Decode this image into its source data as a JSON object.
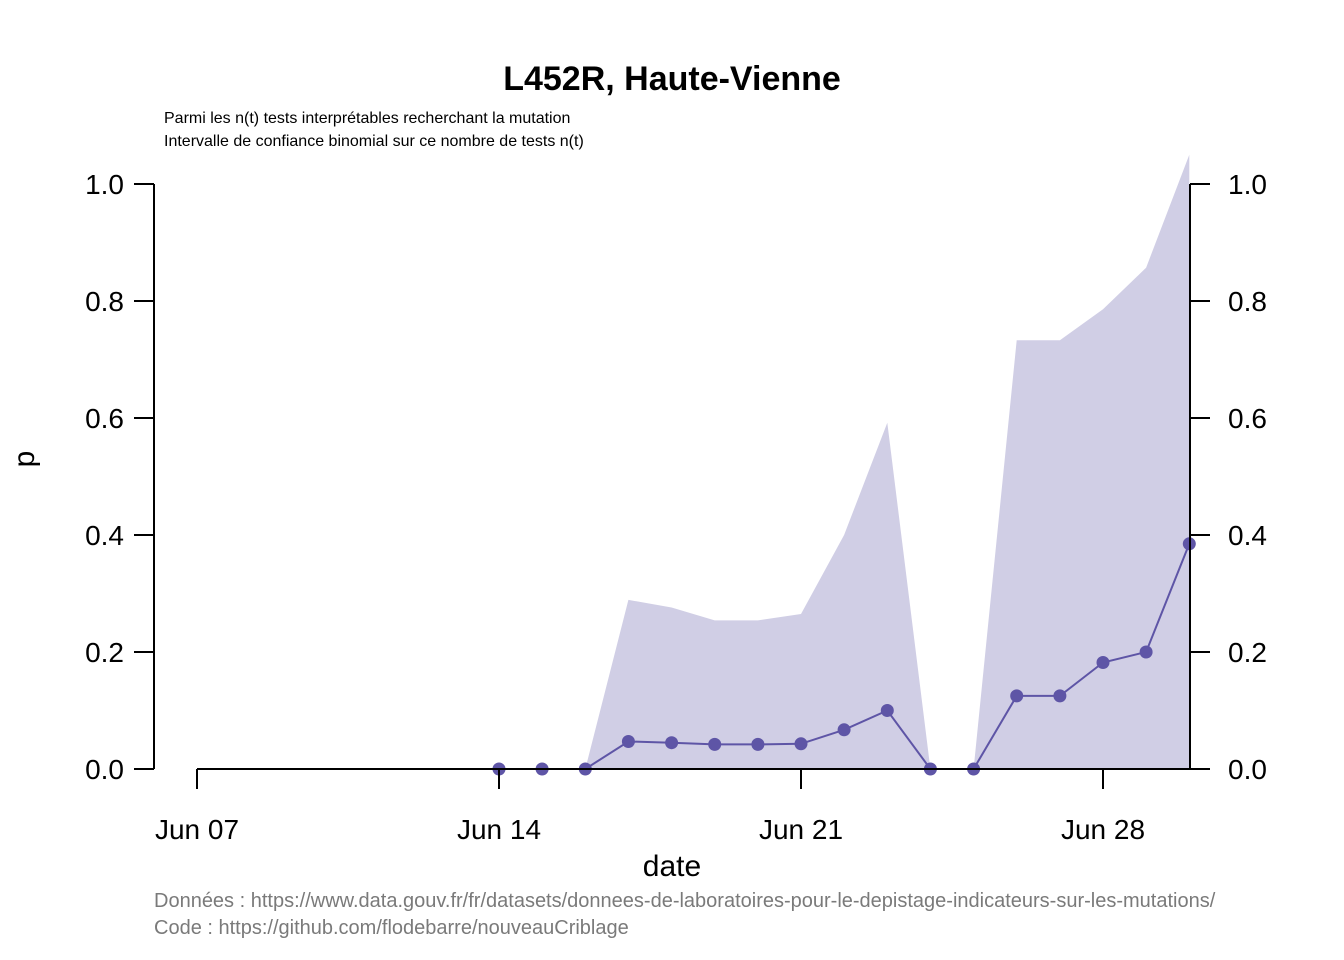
{
  "chart_data": {
    "type": "line",
    "title": "L452R, Haute-Vienne",
    "subtitle_lines": [
      "Parmi les n(t) tests interprétables recherchant la mutation",
      "Intervalle de confiance binomial sur ce nombre de tests n(t)"
    ],
    "xlabel": "date",
    "ylabel": "p",
    "ylim": [
      0,
      1.05
    ],
    "yticks": [
      "0.0",
      "0.2",
      "0.4",
      "0.6",
      "0.8",
      "1.0"
    ],
    "xticks": [
      {
        "label": "Jun 07",
        "day": 7
      },
      {
        "label": "Jun 14",
        "day": 14
      },
      {
        "label": "Jun 21",
        "day": 21
      },
      {
        "label": "Jun 28",
        "day": 28
      }
    ],
    "xlim_days": [
      6,
      30
    ],
    "series": [
      {
        "color": "#5e55a6",
        "days": [
          14,
          15,
          16,
          17,
          18,
          19,
          20,
          21,
          22,
          23,
          24,
          25,
          26,
          27,
          28,
          29,
          30
        ],
        "values": [
          0.0,
          0.0,
          0.0,
          0.047,
          0.045,
          0.042,
          0.042,
          0.043,
          0.067,
          0.1,
          0.0,
          0.0,
          0.125,
          0.125,
          0.182,
          0.2,
          0.385
        ]
      }
    ],
    "ci": {
      "color": "#d0cee5",
      "segments": [
        {
          "days": [
            16,
            17,
            18,
            19,
            20,
            21,
            22,
            23,
            24
          ],
          "upper": [
            0.0,
            0.289,
            0.276,
            0.254,
            0.254,
            0.265,
            0.4,
            0.592,
            0.0
          ]
        },
        {
          "days": [
            25,
            26,
            27,
            28,
            29,
            30
          ],
          "upper": [
            0.0,
            0.733,
            0.733,
            0.786,
            0.857,
            1.05
          ]
        }
      ]
    },
    "credits": [
      "Données : https://www.data.gouv.fr/fr/datasets/donnees-de-laboratoires-pour-le-depistage-indicateurs-sur-les-mutations/",
      "Code : https://github.com/flodebarre/nouveauCriblage"
    ]
  }
}
